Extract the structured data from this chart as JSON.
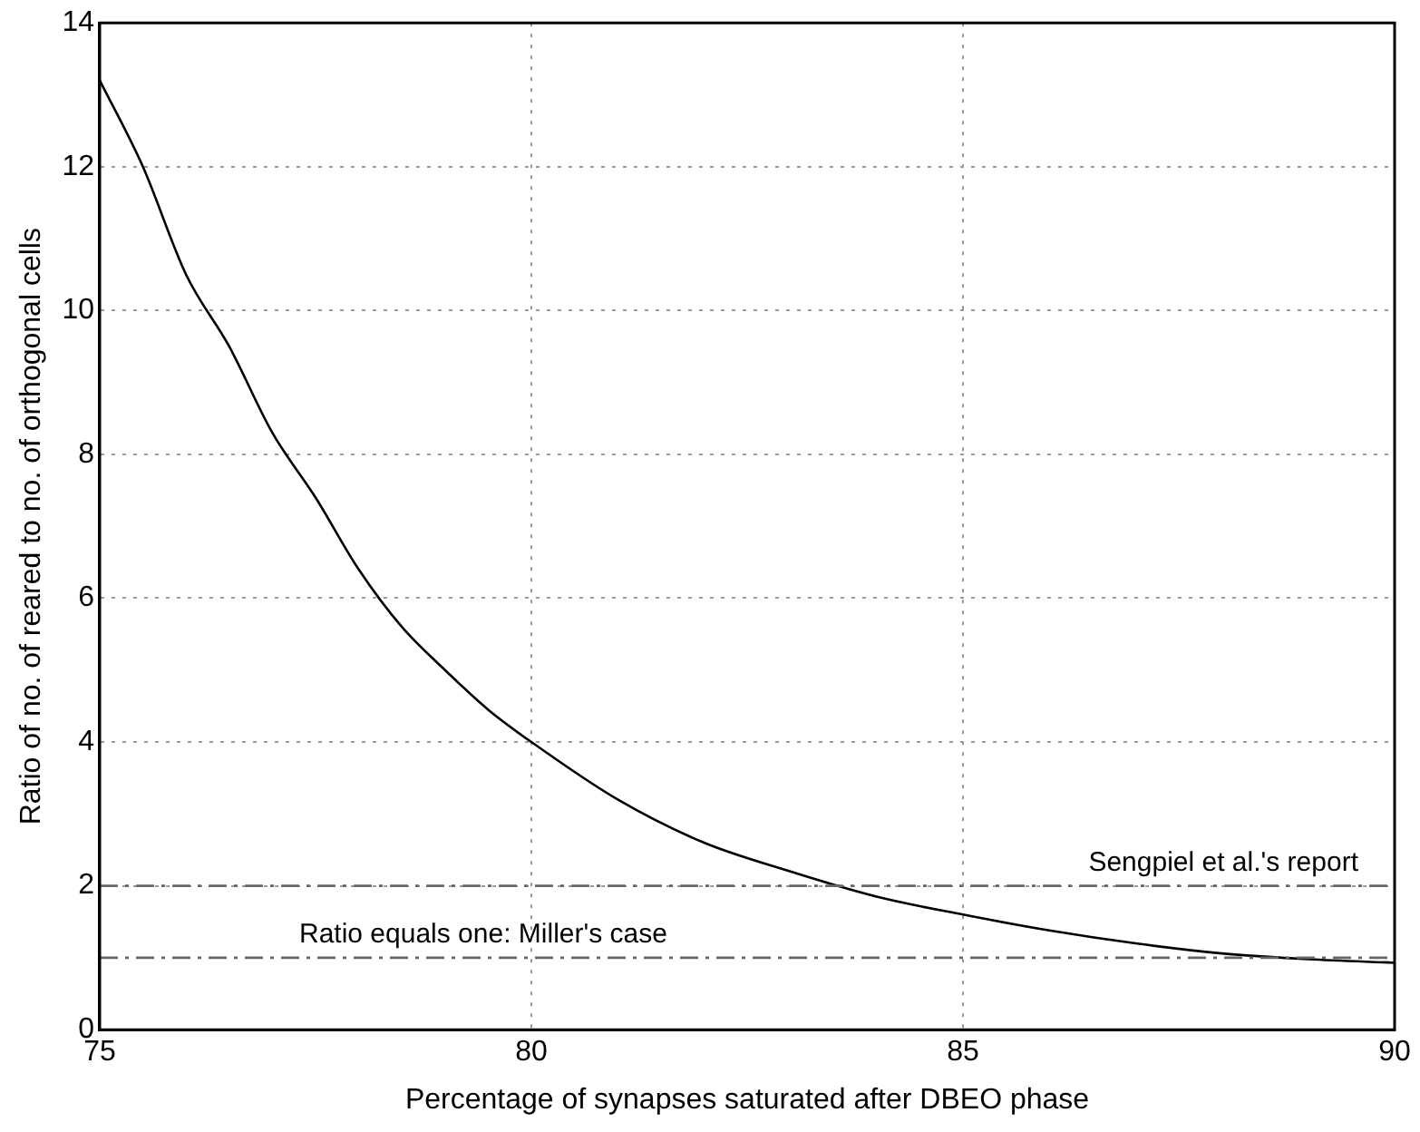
{
  "chart_data": {
    "type": "line",
    "xlabel": "Percentage of synapses saturated after DBEO phase",
    "ylabel": "Ratio of no. of reared to no. of orthogonal cells",
    "x": [
      75,
      75.5,
      76,
      76.5,
      77,
      77.5,
      78,
      78.5,
      79,
      79.5,
      80,
      81,
      82,
      83,
      84,
      85,
      86,
      87,
      88,
      89,
      90
    ],
    "series": [
      {
        "color": "#000000",
        "values": [
          13.2,
          12.0,
          10.5,
          9.5,
          8.3,
          7.4,
          6.4,
          5.6,
          5.0,
          4.45,
          4.0,
          3.2,
          2.6,
          2.2,
          1.85,
          1.6,
          1.38,
          1.2,
          1.06,
          0.98,
          0.93
        ]
      }
    ],
    "xlim": [
      75,
      90
    ],
    "xticks": [
      75,
      80,
      85,
      90
    ],
    "ylim": [
      0,
      14
    ],
    "yticks": [
      0,
      2,
      4,
      6,
      8,
      10,
      12,
      14
    ],
    "ref_lines": [
      {
        "axis": "y",
        "value": 2,
        "label": "Sengpiel et al.'s report",
        "color": "#666666",
        "line_style": "dashdot"
      },
      {
        "axis": "y",
        "value": 1,
        "label": "Ratio equals one: Miller's case",
        "color": "#666666",
        "line_style": "dashdot"
      }
    ],
    "grid": true,
    "legend": false,
    "marker": "none",
    "line_style": "solid"
  }
}
